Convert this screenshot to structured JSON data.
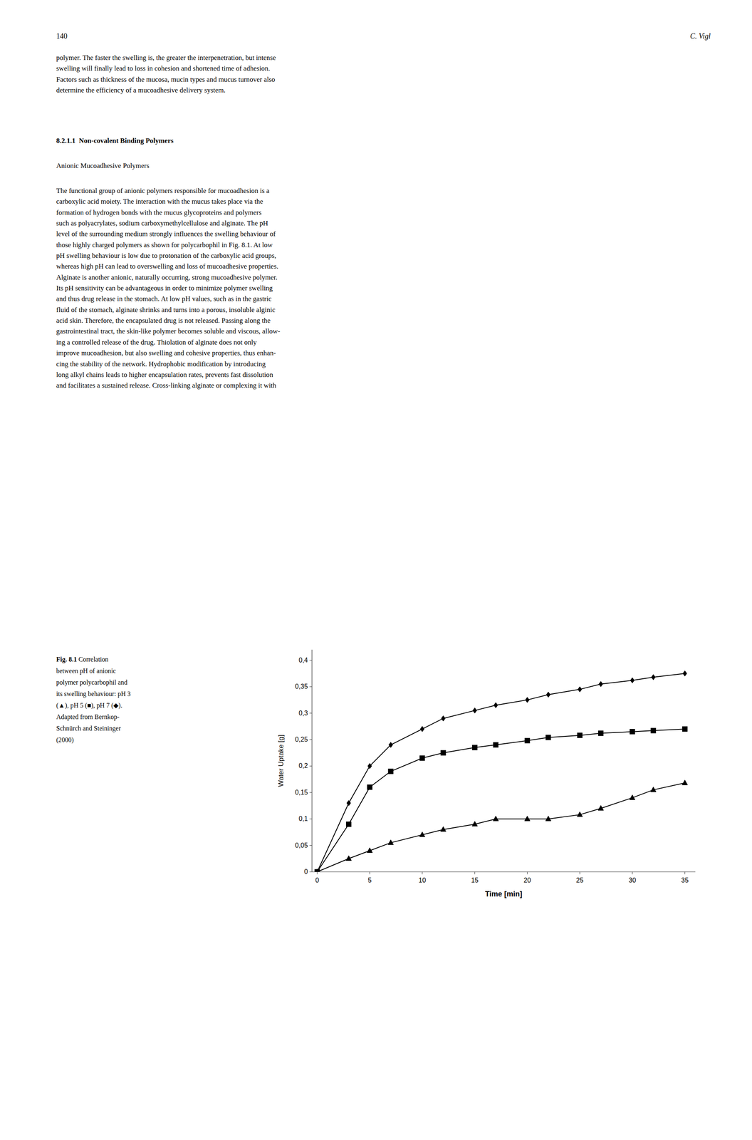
{
  "header_num": "140",
  "header_name": "C. Vigl",
  "body_text_1": "polymer. The faster the swelling is, the greater the interpenetration, but intense\nswelling will finally lead to loss in cohesion and shortened time of adhesion.\nFactors such as thickness of the mucosa, mucin types and mucus turnover also\ndetermine the efficiency of a mucoadhesive delivery system.",
  "section_heading": "8.2.1.1  Non-covalent Binding Polymers",
  "subheading": "Anionic Mucoadhesive Polymers",
  "body_text_2": "The functional group of anionic polymers responsible for mucoadhesion is a\ncarboxylic acid moiety. The interaction with the mucus takes place via the\nformation of hydrogen bonds with the mucus glycoproteins and polymers\nsuch as polyacrylates, sodium carboxymethylcellulose and alginate. The pH\nlevel of the surrounding medium strongly influences the swelling behaviour of\nthose highly charged polymers as shown for polycarbophil in Fig. 8.1. At low\npH swelling behaviour is low due to protonation of the carboxylic acid groups,\nwhereas high pH can lead to overswelling and loss of mucoadhesive properties.\nAlginate is another anionic, naturally occurring, strong mucoadhesive polymer.\nIts pH sensitivity can be advantageous in order to minimize polymer swelling\nand thus drug release in the stomach. At low pH values, such as in the gastric\nfluid of the stomach, alginate shrinks and turns into a porous, insoluble alginic\nacid skin. Therefore, the encapsulated drug is not released. Passing along the\ngastrointestinal tract, the skin-like polymer becomes soluble and viscous, allow-\ning a controlled release of the drug. Thiolation of alginate does not only\nimprove mucoadhesion, but also swelling and cohesive properties, thus enhan-\ncing the stability of the network. Hydrophobic modification by introducing\nlong alkyl chains leads to higher encapsulation rates, prevents fast dissolution\nand facilitates a sustained release. Cross-linking alginate or complexing it with",
  "caption_bold": "Fig. 8.1",
  "caption_text": " Correlation\nbetween pH of anionic\npolymer polycarbophil and\nits swelling behaviour: pH 3\n(▲), pH 5 (■), pH 7 (◆).\nAdapted from Bernkop-\nSchnürch and Steininger\n(2000)",
  "chart_data": {
    "type": "line",
    "xlabel": "Time [min]",
    "ylabel": "Water Uptake [g]",
    "x": [
      0,
      3,
      5,
      7,
      10,
      12,
      15,
      17,
      20,
      22,
      25,
      27,
      30,
      32,
      35
    ],
    "xlim": [
      -0.5,
      36
    ],
    "ylim": [
      0,
      0.42
    ],
    "xticks": [
      0,
      5,
      10,
      15,
      20,
      25,
      30,
      35
    ],
    "yticks": [
      0,
      {
        "value": 0.05,
        "label": "0,05"
      },
      {
        "value": 0.1,
        "label": "0,1"
      },
      {
        "value": 0.15,
        "label": "0,15"
      },
      {
        "value": 0.2,
        "label": "0,2"
      },
      {
        "value": 0.25,
        "label": "0,25"
      },
      {
        "value": 0.3,
        "label": "0,3"
      },
      {
        "value": 0.35,
        "label": "0,35"
      },
      {
        "value": 0.4,
        "label": "0,4"
      }
    ],
    "grid": false,
    "series": [
      {
        "marker": "diamond",
        "color": "#000000",
        "values": [
          0,
          0.13,
          0.2,
          0.24,
          0.27,
          0.29,
          0.305,
          0.315,
          0.325,
          0.335,
          0.345,
          0.355,
          0.362,
          0.368,
          0.375
        ]
      },
      {
        "marker": "square",
        "color": "#000000",
        "values": [
          0,
          0.09,
          0.16,
          0.19,
          0.215,
          0.225,
          0.235,
          0.24,
          0.248,
          0.254,
          0.258,
          0.262,
          0.265,
          0.267,
          0.27
        ]
      },
      {
        "marker": "triangle",
        "color": "#000000",
        "values": [
          0,
          0.025,
          0.04,
          0.055,
          0.07,
          0.08,
          0.09,
          0.1,
          0.1,
          0.1,
          0.108,
          0.12,
          0.14,
          0.155,
          0.168
        ]
      }
    ]
  }
}
